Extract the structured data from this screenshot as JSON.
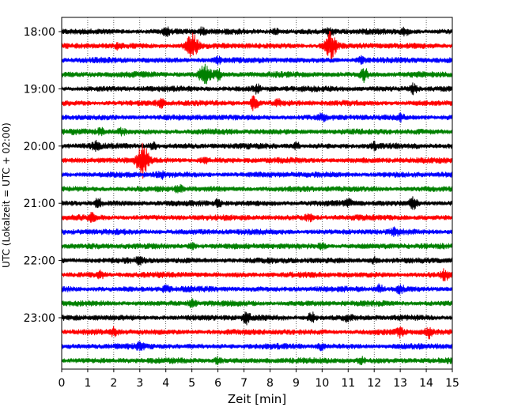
{
  "chart_data": {
    "type": "line",
    "title": "",
    "xlabel": "Zeit  [min]",
    "ylabel": "UTC (Lokalzeit = UTC + 02:00)",
    "xlim": [
      0,
      15
    ],
    "x_ticks": [
      "0",
      "1",
      "2",
      "3",
      "4",
      "5",
      "6",
      "7",
      "8",
      "9",
      "10",
      "11",
      "12",
      "13",
      "14",
      "15"
    ],
    "y_tick_labels": [
      "18:00",
      "19:00",
      "20:00",
      "21:00",
      "22:00",
      "23:00"
    ],
    "grid": "vertical dotted lines at each minute",
    "trace_colors": [
      "#000000",
      "#ff0000",
      "#0000ff",
      "#008000"
    ],
    "traces": [
      {
        "start": "18:00",
        "events": [
          {
            "t": 4.0,
            "a": 1.3
          },
          {
            "t": 5.4,
            "a": 1.2
          },
          {
            "t": 8.2,
            "a": 1.0
          },
          {
            "t": 10.3,
            "a": 1.4
          },
          {
            "t": 13.2,
            "a": 1.2
          }
        ]
      },
      {
        "start": "18:15",
        "events": [
          {
            "t": 5.0,
            "a": 4.5
          },
          {
            "t": 10.3,
            "a": 5.5
          },
          {
            "t": 2.2,
            "a": 1.0
          }
        ]
      },
      {
        "start": "18:30",
        "events": [
          {
            "t": 6.0,
            "a": 1.2
          },
          {
            "t": 11.5,
            "a": 1.0
          }
        ]
      },
      {
        "start": "18:45",
        "events": [
          {
            "t": 5.5,
            "a": 3.2
          },
          {
            "t": 6.0,
            "a": 1.8
          },
          {
            "t": 11.6,
            "a": 2.6
          }
        ]
      },
      {
        "start": "19:00",
        "events": [
          {
            "t": 7.5,
            "a": 1.2
          },
          {
            "t": 13.5,
            "a": 1.6
          }
        ]
      },
      {
        "start": "19:15",
        "events": [
          {
            "t": 3.8,
            "a": 1.2
          },
          {
            "t": 7.4,
            "a": 2.8
          },
          {
            "t": 8.3,
            "a": 1.0
          }
        ]
      },
      {
        "start": "19:30",
        "events": [
          {
            "t": 10.0,
            "a": 1.0
          },
          {
            "t": 13.0,
            "a": 1.0
          }
        ]
      },
      {
        "start": "19:45",
        "events": [
          {
            "t": 1.5,
            "a": 1.0
          },
          {
            "t": 2.3,
            "a": 1.0
          }
        ]
      },
      {
        "start": "20:00",
        "events": [
          {
            "t": 1.3,
            "a": 1.2
          },
          {
            "t": 3.5,
            "a": 1.2
          },
          {
            "t": 9.0,
            "a": 1.2
          },
          {
            "t": 12.0,
            "a": 1.0
          }
        ]
      },
      {
        "start": "20:15",
        "events": [
          {
            "t": 3.1,
            "a": 6.0
          },
          {
            "t": 5.5,
            "a": 1.0
          }
        ]
      },
      {
        "start": "20:30",
        "events": [
          {
            "t": 3.8,
            "a": 1.2
          }
        ]
      },
      {
        "start": "20:45",
        "events": [
          {
            "t": 4.5,
            "a": 1.0
          }
        ]
      },
      {
        "start": "21:00",
        "events": [
          {
            "t": 1.4,
            "a": 1.6
          },
          {
            "t": 6.0,
            "a": 1.2
          },
          {
            "t": 11.0,
            "a": 1.2
          },
          {
            "t": 13.5,
            "a": 2.0
          }
        ]
      },
      {
        "start": "21:15",
        "events": [
          {
            "t": 1.2,
            "a": 1.4
          },
          {
            "t": 9.5,
            "a": 1.0
          }
        ]
      },
      {
        "start": "21:30",
        "events": [
          {
            "t": 12.8,
            "a": 1.0
          }
        ]
      },
      {
        "start": "21:45",
        "events": [
          {
            "t": 5.0,
            "a": 1.2
          },
          {
            "t": 10.0,
            "a": 1.0
          }
        ]
      },
      {
        "start": "22:00",
        "events": [
          {
            "t": 3.0,
            "a": 1.0
          },
          {
            "t": 12.0,
            "a": 1.0
          }
        ]
      },
      {
        "start": "22:15",
        "events": [
          {
            "t": 1.5,
            "a": 1.0
          },
          {
            "t": 14.7,
            "a": 1.6
          }
        ]
      },
      {
        "start": "22:30",
        "events": [
          {
            "t": 4.0,
            "a": 1.0
          },
          {
            "t": 12.2,
            "a": 1.6
          },
          {
            "t": 13.0,
            "a": 1.4
          }
        ]
      },
      {
        "start": "22:45",
        "events": [
          {
            "t": 5.0,
            "a": 1.0
          }
        ]
      },
      {
        "start": "23:00",
        "events": [
          {
            "t": 7.1,
            "a": 1.8
          },
          {
            "t": 9.6,
            "a": 1.8
          },
          {
            "t": 11.0,
            "a": 1.0
          }
        ]
      },
      {
        "start": "23:15",
        "events": [
          {
            "t": 2.0,
            "a": 1.2
          },
          {
            "t": 13.0,
            "a": 1.5
          },
          {
            "t": 14.1,
            "a": 1.8
          }
        ]
      },
      {
        "start": "23:30",
        "events": [
          {
            "t": 3.0,
            "a": 1.0
          },
          {
            "t": 10.0,
            "a": 1.0
          }
        ]
      },
      {
        "start": "23:45",
        "events": [
          {
            "t": 6.0,
            "a": 1.0
          },
          {
            "t": 11.5,
            "a": 1.0
          }
        ]
      }
    ]
  }
}
